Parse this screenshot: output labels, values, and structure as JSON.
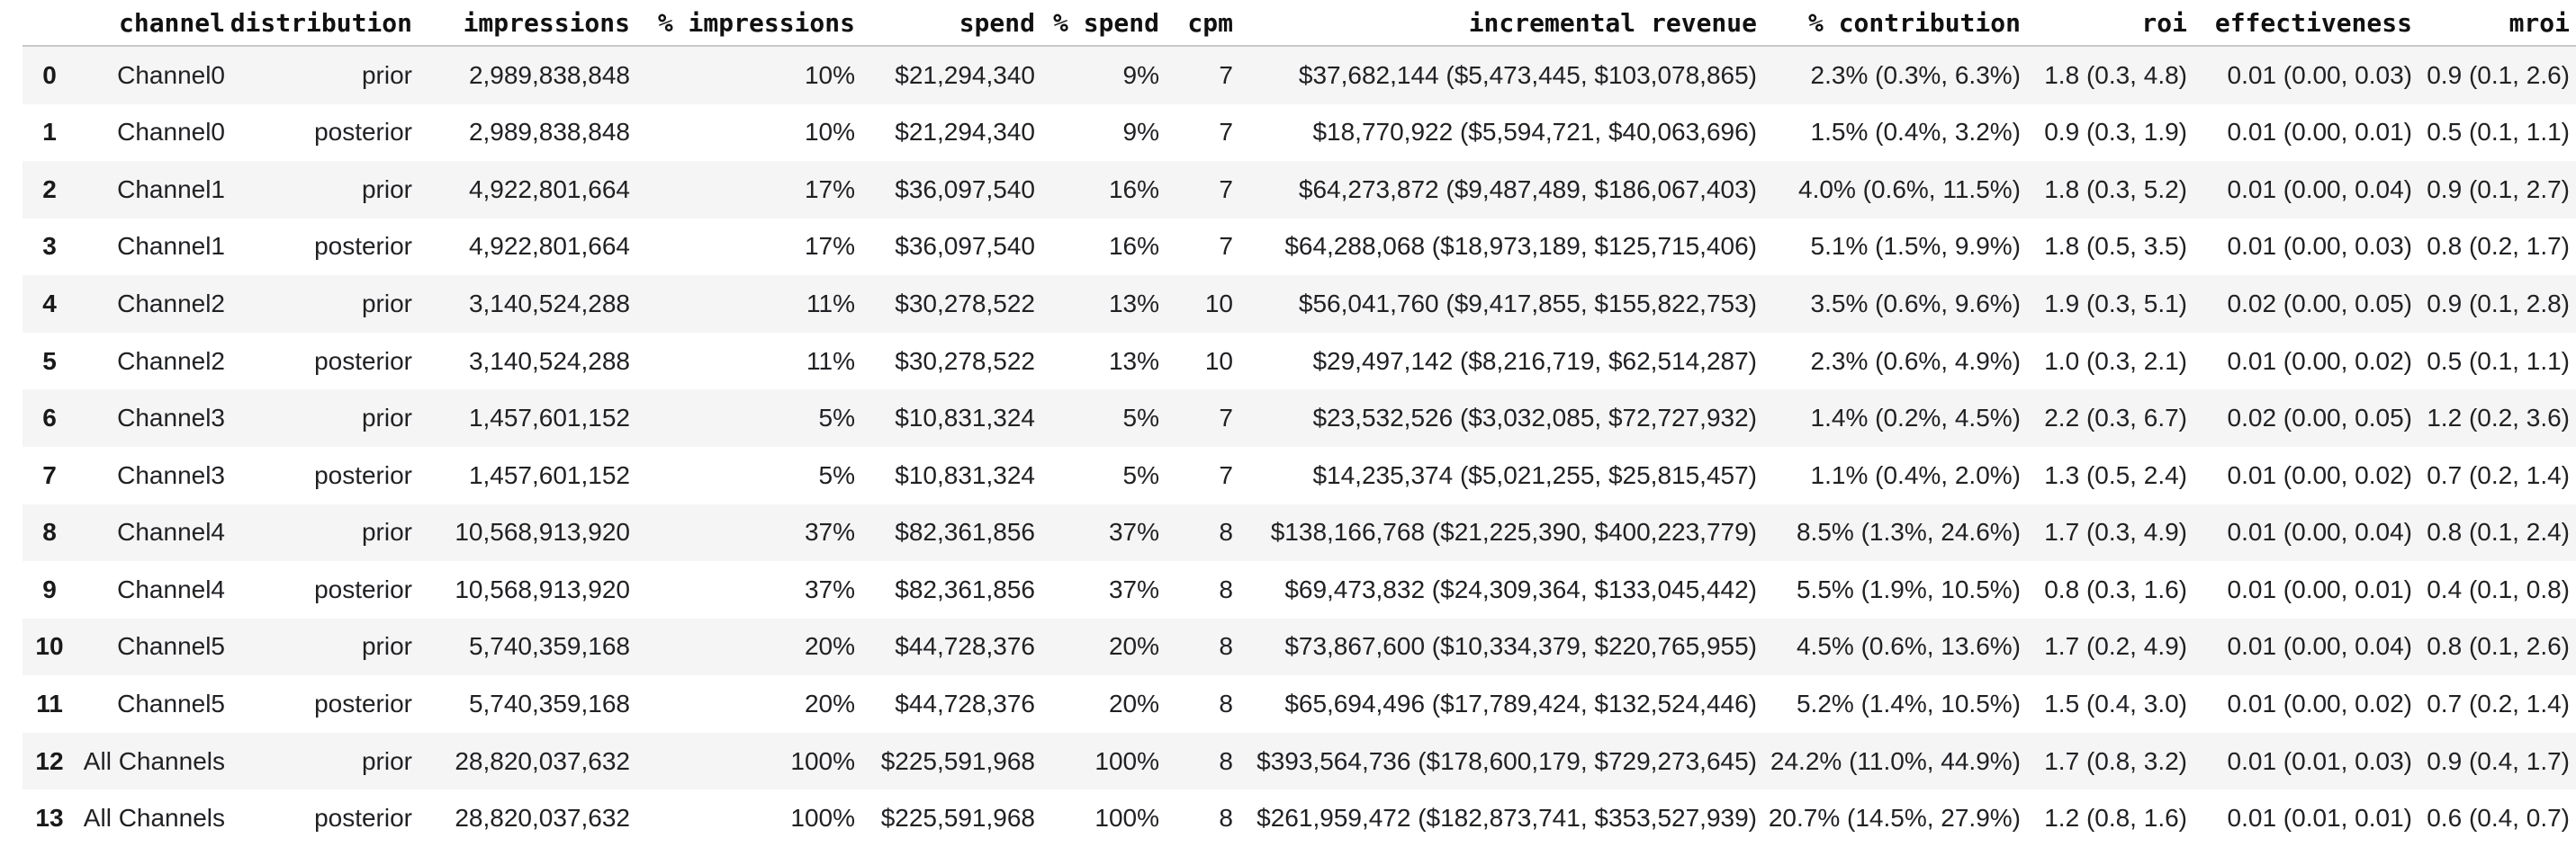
{
  "colors": {
    "row_alt_background": "#f5f5f5",
    "header_border": "#c9c9c9",
    "body_text": "#202124",
    "header_text": "#111111"
  },
  "table": {
    "columns": [
      {
        "key": "row-index",
        "label": ""
      },
      {
        "key": "channel",
        "label": "channel"
      },
      {
        "key": "distribution",
        "label": "distribution"
      },
      {
        "key": "impressions",
        "label": "impressions"
      },
      {
        "key": "pct-impressions",
        "label": "% impressions"
      },
      {
        "key": "spend",
        "label": "spend"
      },
      {
        "key": "pct-spend",
        "label": "% spend"
      },
      {
        "key": "cpm",
        "label": "cpm"
      },
      {
        "key": "incremental-revenue",
        "label": "incremental revenue"
      },
      {
        "key": "pct-contribution",
        "label": "% contribution"
      },
      {
        "key": "roi",
        "label": "roi"
      },
      {
        "key": "effectiveness",
        "label": "effectiveness"
      },
      {
        "key": "mroi",
        "label": "mroi"
      }
    ],
    "rows": [
      [
        "0",
        "Channel0",
        "prior",
        "2,989,838,848",
        "10%",
        "$21,294,340",
        "9%",
        "7",
        "$37,682,144 ($5,473,445, $103,078,865)",
        "2.3% (0.3%, 6.3%)",
        "1.8 (0.3, 4.8)",
        "0.01 (0.00, 0.03)",
        "0.9 (0.1, 2.6)"
      ],
      [
        "1",
        "Channel0",
        "posterior",
        "2,989,838,848",
        "10%",
        "$21,294,340",
        "9%",
        "7",
        "$18,770,922 ($5,594,721, $40,063,696)",
        "1.5% (0.4%, 3.2%)",
        "0.9 (0.3, 1.9)",
        "0.01 (0.00, 0.01)",
        "0.5 (0.1, 1.1)"
      ],
      [
        "2",
        "Channel1",
        "prior",
        "4,922,801,664",
        "17%",
        "$36,097,540",
        "16%",
        "7",
        "$64,273,872 ($9,487,489, $186,067,403)",
        "4.0% (0.6%, 11.5%)",
        "1.8 (0.3, 5.2)",
        "0.01 (0.00, 0.04)",
        "0.9 (0.1, 2.7)"
      ],
      [
        "3",
        "Channel1",
        "posterior",
        "4,922,801,664",
        "17%",
        "$36,097,540",
        "16%",
        "7",
        "$64,288,068 ($18,973,189, $125,715,406)",
        "5.1% (1.5%, 9.9%)",
        "1.8 (0.5, 3.5)",
        "0.01 (0.00, 0.03)",
        "0.8 (0.2, 1.7)"
      ],
      [
        "4",
        "Channel2",
        "prior",
        "3,140,524,288",
        "11%",
        "$30,278,522",
        "13%",
        "10",
        "$56,041,760 ($9,417,855, $155,822,753)",
        "3.5% (0.6%, 9.6%)",
        "1.9 (0.3, 5.1)",
        "0.02 (0.00, 0.05)",
        "0.9 (0.1, 2.8)"
      ],
      [
        "5",
        "Channel2",
        "posterior",
        "3,140,524,288",
        "11%",
        "$30,278,522",
        "13%",
        "10",
        "$29,497,142 ($8,216,719, $62,514,287)",
        "2.3% (0.6%, 4.9%)",
        "1.0 (0.3, 2.1)",
        "0.01 (0.00, 0.02)",
        "0.5 (0.1, 1.1)"
      ],
      [
        "6",
        "Channel3",
        "prior",
        "1,457,601,152",
        "5%",
        "$10,831,324",
        "5%",
        "7",
        "$23,532,526 ($3,032,085, $72,727,932)",
        "1.4% (0.2%, 4.5%)",
        "2.2 (0.3, 6.7)",
        "0.02 (0.00, 0.05)",
        "1.2 (0.2, 3.6)"
      ],
      [
        "7",
        "Channel3",
        "posterior",
        "1,457,601,152",
        "5%",
        "$10,831,324",
        "5%",
        "7",
        "$14,235,374 ($5,021,255, $25,815,457)",
        "1.1% (0.4%, 2.0%)",
        "1.3 (0.5, 2.4)",
        "0.01 (0.00, 0.02)",
        "0.7 (0.2, 1.4)"
      ],
      [
        "8",
        "Channel4",
        "prior",
        "10,568,913,920",
        "37%",
        "$82,361,856",
        "37%",
        "8",
        "$138,166,768 ($21,225,390, $400,223,779)",
        "8.5% (1.3%, 24.6%)",
        "1.7 (0.3, 4.9)",
        "0.01 (0.00, 0.04)",
        "0.8 (0.1, 2.4)"
      ],
      [
        "9",
        "Channel4",
        "posterior",
        "10,568,913,920",
        "37%",
        "$82,361,856",
        "37%",
        "8",
        "$69,473,832 ($24,309,364, $133,045,442)",
        "5.5% (1.9%, 10.5%)",
        "0.8 (0.3, 1.6)",
        "0.01 (0.00, 0.01)",
        "0.4 (0.1, 0.8)"
      ],
      [
        "10",
        "Channel5",
        "prior",
        "5,740,359,168",
        "20%",
        "$44,728,376",
        "20%",
        "8",
        "$73,867,600 ($10,334,379, $220,765,955)",
        "4.5% (0.6%, 13.6%)",
        "1.7 (0.2, 4.9)",
        "0.01 (0.00, 0.04)",
        "0.8 (0.1, 2.6)"
      ],
      [
        "11",
        "Channel5",
        "posterior",
        "5,740,359,168",
        "20%",
        "$44,728,376",
        "20%",
        "8",
        "$65,694,496 ($17,789,424, $132,524,446)",
        "5.2% (1.4%, 10.5%)",
        "1.5 (0.4, 3.0)",
        "0.01 (0.00, 0.02)",
        "0.7 (0.2, 1.4)"
      ],
      [
        "12",
        "All Channels",
        "prior",
        "28,820,037,632",
        "100%",
        "$225,591,968",
        "100%",
        "8",
        "$393,564,736 ($178,600,179, $729,273,645)",
        "24.2% (11.0%, 44.9%)",
        "1.7 (0.8, 3.2)",
        "0.01 (0.01, 0.03)",
        "0.9 (0.4, 1.7)"
      ],
      [
        "13",
        "All Channels",
        "posterior",
        "28,820,037,632",
        "100%",
        "$225,591,968",
        "100%",
        "8",
        "$261,959,472 ($182,873,741, $353,527,939)",
        "20.7% (14.5%, 27.9%)",
        "1.2 (0.8, 1.6)",
        "0.01 (0.01, 0.01)",
        "0.6 (0.4, 0.7)"
      ]
    ]
  }
}
